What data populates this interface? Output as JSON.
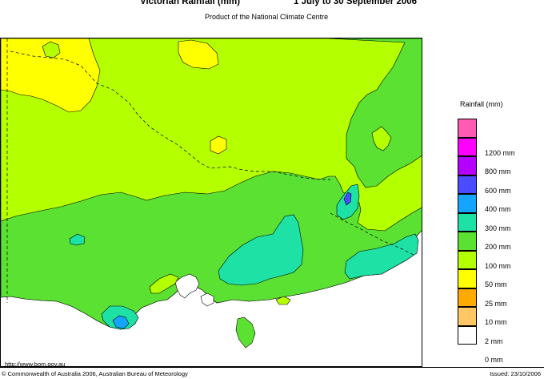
{
  "header": {
    "title": "Victorian Rainfall (mm)",
    "period": "1 July to 30 September 2006",
    "subtitle": "Product of the National Climate Centre"
  },
  "legend": {
    "title": "Rainfall (mm)",
    "items": [
      {
        "label": "",
        "color": "#ff5ab4"
      },
      {
        "label": "1200 mm",
        "color": "#ff00ff"
      },
      {
        "label": "800 mm",
        "color": "#b400ff"
      },
      {
        "label": "600 mm",
        "color": "#4b4bff"
      },
      {
        "label": "400 mm",
        "color": "#14a5ff"
      },
      {
        "label": "300 mm",
        "color": "#1ee1a5"
      },
      {
        "label": "200 mm",
        "color": "#5ae132"
      },
      {
        "label": "100 mm",
        "color": "#b4ff00"
      },
      {
        "label": "50 mm",
        "color": "#ffff00"
      },
      {
        "label": "25 mm",
        "color": "#ffaa00"
      },
      {
        "label": "10 mm",
        "color": "#ffc864"
      },
      {
        "label": "2 mm",
        "color": "#ffffff"
      },
      {
        "label": "0 mm",
        "color": ""
      }
    ]
  },
  "footer": {
    "url": "http://www.bom.gov.au",
    "copyright": "© Commonwealth of Australia 2006, Australian Bureau of Meteorology",
    "issued": "Issued: 23/10/2006"
  }
}
